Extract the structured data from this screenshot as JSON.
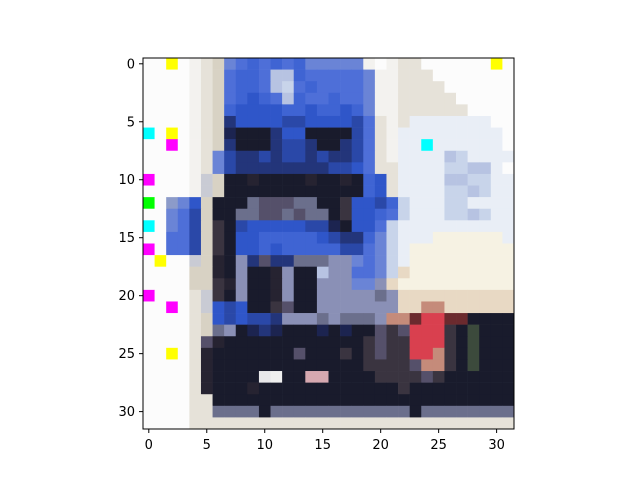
{
  "chart_data": {
    "type": "heatmap",
    "title": "",
    "xlabel": "",
    "ylabel": "",
    "xlim": [
      -0.5,
      31.5
    ],
    "ylim": [
      31.5,
      -0.5
    ],
    "grid": false,
    "x_ticks": [
      0,
      5,
      10,
      15,
      20,
      25,
      30
    ],
    "y_ticks": [
      0,
      5,
      10,
      15,
      20,
      25,
      30
    ],
    "image": {
      "width": 32,
      "height": 32,
      "palette": {
        "A": "#fcfcfc",
        "B": "#f3f2ef",
        "C": "#e6e2d9",
        "D": "#d8d2c4",
        "E": "#c9cbd4",
        "F": "#8c9bc9",
        "G": "#6a84d6",
        "H": "#4e6fd8",
        "I": "#3f64d3",
        "J": "#2f56c9",
        "K": "#2a48a8",
        "L": "#23357a",
        "M": "#1c2450",
        "N": "#191b2c",
        "O": "#262331",
        "P": "#3a3440",
        "Q": "#55506a",
        "R": "#6b6f8c",
        "S": "#8a90b6",
        "T": "#b7c3e2",
        "U": "#c8d4ea",
        "V": "#e9eef6",
        "W": "#f6f2e3",
        "X": "#e8d9c4",
        "Y": "#c58b7a",
        "Z": "#d9404f",
        "a": "#6b2a2e",
        "b": "#3c4a3c",
        "c": "#e8e8ea",
        "d": "#ffff00",
        "e": "#00ffff",
        "f": "#ff00ff",
        "g": "#00ff00",
        "h": "#a8b4e0",
        "i": "#d6a8b0",
        "j": "#efefef"
      },
      "rows": [
        "AAdABCDGHIHIHIGGGGGBABCCAAAAAAdA",
        "AAAABCDHIIHTTIHHHHHGBBCCCAAAAAAA",
        "AAAABCDHIIHTUHIHHHHGBBCCCCAAAAAA",
        "AAAABCDHIJIHTIHHIHHGBBCCCCCAAAAA",
        "AAAABCDIJJJJIIJIIJIGBBCCCCCCAAAA",
        "AAAABCDLJJJJKKJJJJKHCBCVVVVVVVAA",
        "eAdABCDMNNNLJJNNNNKHCBVVVVVVVVVA",
        "AAfABCDLNNNLKKLNNLKHCBVVeVVVVVVA",
        "AAAABCGKLLKLKKLKLLKHCBVVVVTUVVVV",
        "AAAABCGKLLLLLLLLKKJHCCVVVVUUTTVA",
        "fAAABEDNNONNNNONNONIJCVVVVTTUUVV",
        "AAAABEDNNNNNNNNNNNNIJCVVVVUUTUVV",
        "gAFGJDNNNRQQQRRNNPJJKIUVVVUUVVVV",
        "AAGHKDNNRRQQRQRRNPJJIHUVVVUUTUVV",
        "eAGHKDPNKJJJJJKKMNJJHUVVVVVVVVVV",
        "AAHHKDPNJJIIIIIJKLLIGUVVVWWWWWWV",
        "fAHHKDPNJJIJIIIIIKKHGUVWWWWWWWWW",
        "AdAAEDONSLQLLRRRSSGHGUVWWWWWWWWW",
        "AAAADDONSNNOSNNTSSHHGUXWWWWWWWWW",
        "AAAADDPOSNNOSNNSSSGGSXWWWWWWWWWW",
        "fAAACEPNSNNOSNNSSSSSRSXXXXXXXXXX",
        "AAfACEJKJNNPQNNSSSSSSSXXYYXXXXXX",
        "AAAACDJKJKKLSSSRSRRRSYYaZZaaNNNN",
        "AAAACDRSNMLMNNNMNMNNQPQZZZPNbNNN",
        "AAAACQONNNNNNNNNNNNPQPPZZZPNbNNN",
        "AAdACONNNNNNNQNNNPNPQPPZZYPNbNNN",
        "AAAACONNNNNNNNNNNNNPPPPQYYPNbNNN",
        "AAAACONNNNcjNNiiNNNNPPPPQPNNNNNN",
        "AAAACONNNONNNNNNNNNNNNPNNNNNNNNN",
        "AAAACCNNNNNNNNNNNNNNNNNNNNNNNNNN",
        "AAAACCRRRRNRRRRRRRRRRRRNRRRRRRRR",
        "AAAACCCCCCCCCCCCCCCCCCCCCCCCCCCC"
      ]
    }
  }
}
